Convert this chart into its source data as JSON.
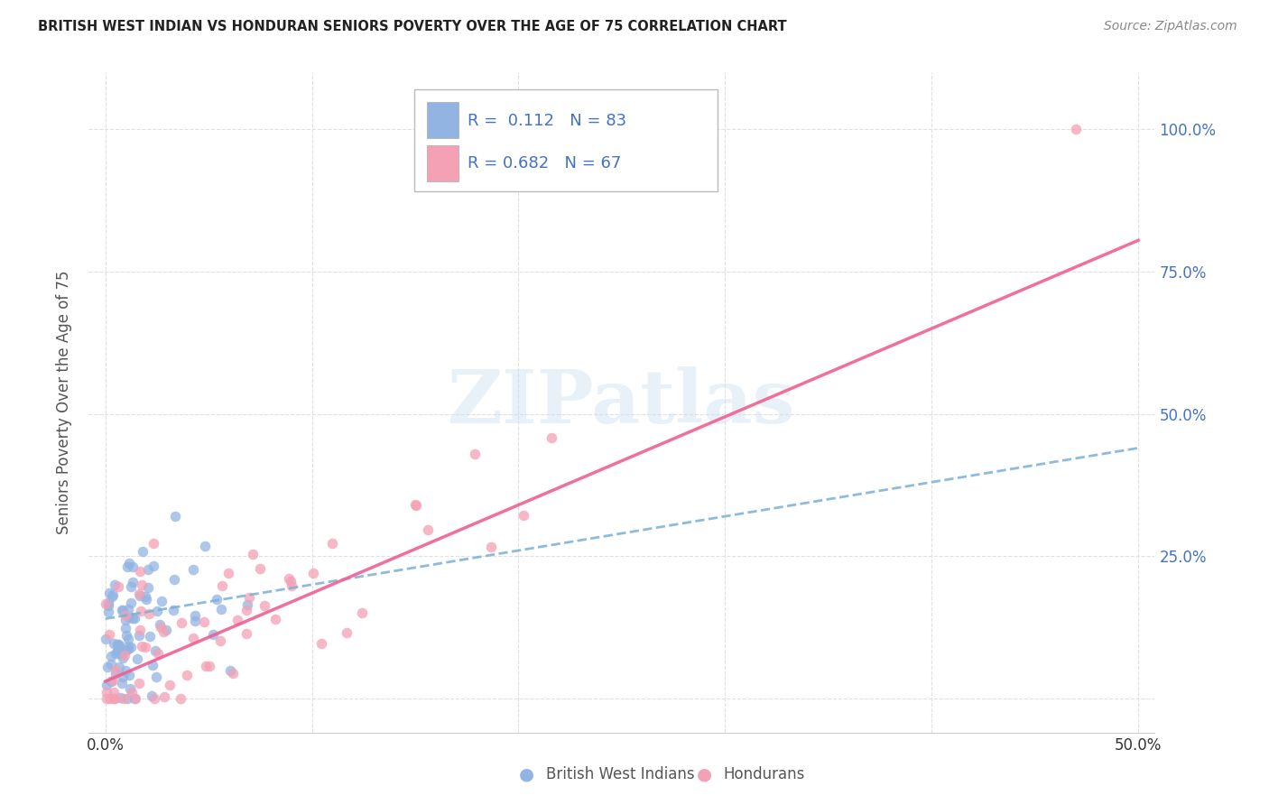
{
  "title": "BRITISH WEST INDIAN VS HONDURAN SENIORS POVERTY OVER THE AGE OF 75 CORRELATION CHART",
  "source": "Source: ZipAtlas.com",
  "ylabel": "Seniors Poverty Over the Age of 75",
  "bwi_R": 0.112,
  "bwi_N": 83,
  "hon_R": 0.682,
  "hon_N": 67,
  "bwi_color": "#92b4e3",
  "hon_color": "#f4a0b5",
  "bwi_line_color": "#7ab0d8",
  "hon_line_color": "#f06090",
  "legend_label_bwi": "British West Indians",
  "legend_label_hon": "Hondurans",
  "watermark_text": "ZIPatlas",
  "background_color": "#ffffff",
  "grid_color": "#e0e0e0",
  "ytick_color": "#4472c4",
  "title_color": "#222222",
  "source_color": "#888888",
  "ylabel_color": "#555555"
}
